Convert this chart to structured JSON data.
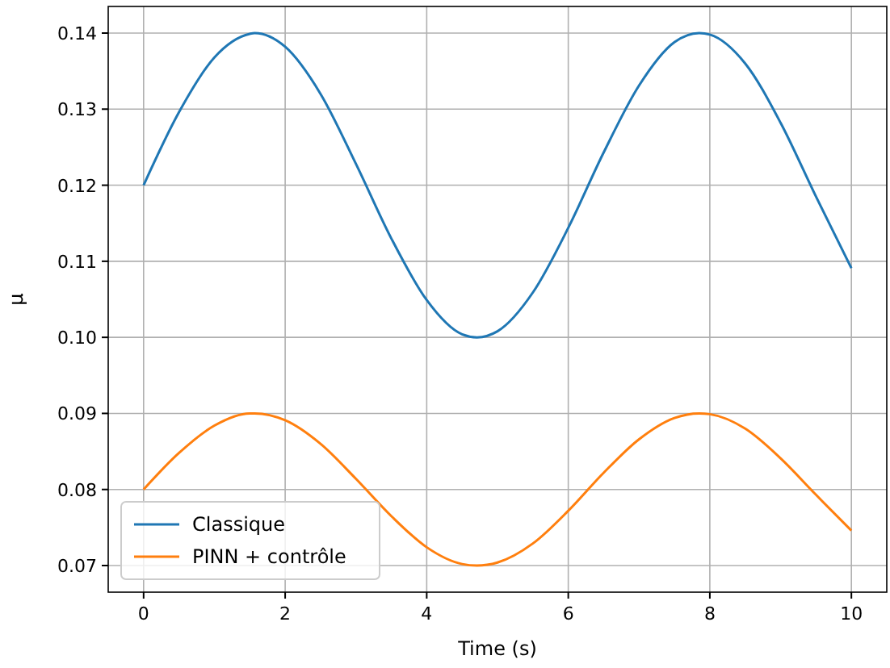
{
  "chart_data": {
    "type": "line",
    "xlabel": "Time (s)",
    "ylabel": "μ",
    "x": [
      0,
      0.5,
      1,
      1.5,
      1.57,
      2,
      2.5,
      3,
      3.5,
      4,
      4.5,
      4.71,
      5,
      5.5,
      6,
      6.5,
      7,
      7.5,
      7.85,
      8,
      8.5,
      9,
      9.5,
      10
    ],
    "series": [
      {
        "name": "Classique",
        "color": "#1f77b4",
        "values": [
          0.12,
          0.1296,
          0.1368,
          0.1399,
          0.14,
          0.1382,
          0.132,
          0.1228,
          0.113,
          0.1049,
          0.1004,
          0.1,
          0.1008,
          0.1059,
          0.1144,
          0.1243,
          0.1331,
          0.1388,
          0.14,
          0.1398,
          0.136,
          0.1282,
          0.1185,
          0.1091
        ]
      },
      {
        "name": "PINN + contrôle",
        "color": "#ff7f0e",
        "values": [
          0.08,
          0.0848,
          0.0884,
          0.09,
          0.09,
          0.0891,
          0.086,
          0.0814,
          0.0765,
          0.0724,
          0.0702,
          0.07,
          0.0704,
          0.0729,
          0.0772,
          0.0822,
          0.0866,
          0.0894,
          0.09,
          0.0899,
          0.088,
          0.0841,
          0.0793,
          0.0746
        ]
      }
    ],
    "xlim": [
      -0.5,
      10.5
    ],
    "xticks": [
      0,
      2,
      4,
      6,
      8,
      10
    ],
    "ylim": [
      0.0665,
      0.1435
    ],
    "yticks": [
      0.07,
      0.08,
      0.09,
      {
        "value": 0.1,
        "label": "0.10"
      },
      0.11,
      0.12,
      0.13,
      0.14
    ],
    "grid": true,
    "legend": "bottom left",
    "line_style": "solid",
    "marker": "none"
  }
}
